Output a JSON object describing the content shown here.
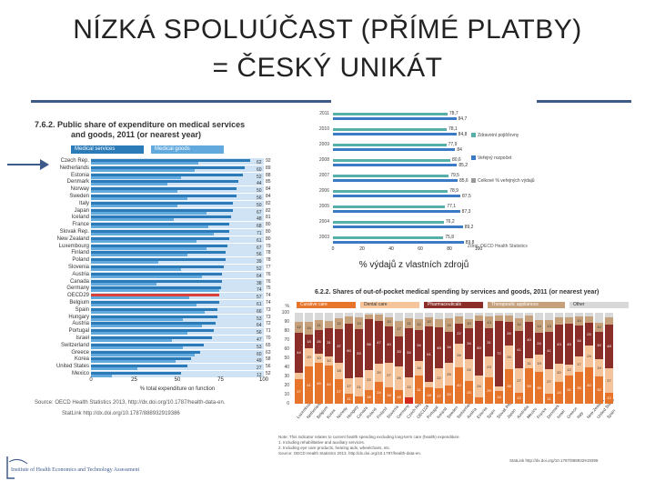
{
  "slide": {
    "title_line1": "NÍZKÁ SPOLUÚČAST (PŘÍMÉ PLATBY)",
    "title_line2": "= ČESKÝ UNIKÁT",
    "accent": "#3e5a8a"
  },
  "left_chart": {
    "fig_title_line1": "7.6.2.  Public share of expenditure on medical services",
    "fig_title_line2": "and goods, 2011 (or nearest year)",
    "legend": [
      "Medical services",
      "Medical goods"
    ],
    "x_ticks": [
      "0",
      "25",
      "50",
      "75",
      "100"
    ],
    "x_title": "% total expenditure on function",
    "source": "Source: OECD Health Statistics 2013, http://dx.doi.org/10.1787/health-data-en.",
    "statlink": "StatLink  http://dx.doi.org/10.1787/888932919386"
  },
  "top_right": {
    "caption": "% výdajů z vlastních zdrojů",
    "note": "Zdroj: OECD Health Statistics",
    "legend": [
      "Zdravotní pojišťovny",
      "Veřejný rozpočet",
      "Celkové % veřejných výdajů"
    ]
  },
  "bottom_right": {
    "title": "6.2.2.  Shares of out-of-pocket medical spending by services and goods, 2011 (or nearest year)",
    "legend": [
      "Curative care",
      "Dental care",
      "Pharmaceuticals",
      "Therapeutic appliances",
      "Other"
    ],
    "y_ticks": [
      "100",
      "90",
      "80",
      "70",
      "60",
      "50",
      "40",
      "30",
      "20",
      "10",
      "0"
    ],
    "y_unit": "%",
    "note1": "Note: This indicator relates to current health spending excluding long-term care (health) expenditure.",
    "note2": "1. Including rehabilitative and auxiliary services.",
    "note3": "2. Including eye care products, hearing aids, wheelchairs, etc.",
    "note4": "Source: OECD Health Statistics 2013, http://dx.doi.org/10.1787/health-data-en.",
    "statlink": "StatLink  http://dx.doi.org/10.1787/888932919396"
  },
  "footer": {
    "logo_text": "Institute of Health Economics and Technology Assessment"
  },
  "chart_data": [
    {
      "type": "bar",
      "title": "Public share of expenditure on medical services and goods, 2011 (or nearest year)",
      "categories": [
        "Czech Rep.",
        "Netherlands",
        "Estonia",
        "Denmark",
        "Norway",
        "Sweden",
        "Italy",
        "Japan",
        "Iceland",
        "France",
        "Slovak Rep.",
        "New Zealand",
        "Luxembourg",
        "Finland",
        "Poland",
        "Slovenia",
        "Austria",
        "Canada",
        "Germany",
        "OECD29",
        "Belgium",
        "Spain",
        "Hungary",
        "Austria",
        "Portugal",
        "Israel",
        "Switzerland",
        "Greece",
        "Korea",
        "United States",
        "Mexico"
      ],
      "series": [
        {
          "name": "Medical services",
          "values": [
            92,
            89,
            88,
            85,
            84,
            84,
            82,
            82,
            81,
            80,
            80,
            80,
            79,
            78,
            78,
            77,
            76,
            76,
            75,
            74,
            74,
            73,
            73,
            72,
            71,
            70,
            65,
            63,
            58,
            56,
            52
          ]
        },
        {
          "name": "Medical goods",
          "values": [
            62,
            60,
            52,
            44,
            50,
            56,
            50,
            67,
            48,
            68,
            71,
            61,
            67,
            56,
            39,
            52,
            64,
            38,
            74,
            57,
            61,
            66,
            53,
            64,
            56,
            47,
            53,
            60,
            49,
            27,
            12
          ]
        }
      ],
      "xlabel": "% total expenditure on function",
      "xlim": [
        0,
        100
      ]
    },
    {
      "type": "bar",
      "categories": [
        "2011",
        "2010",
        "2009",
        "2008",
        "2007",
        "2006",
        "2005",
        "2004",
        "2003"
      ],
      "series": [
        {
          "name": "Zdravotní pojišťovny",
          "values": [
            78.7,
            78.1,
            77.9,
            80.6,
            79.5,
            78.9,
            77.1,
            76.2,
            75.8
          ]
        },
        {
          "name": "Veřejný rozpočet",
          "values": [
            84.7,
            84.8,
            84.0,
            85.2,
            85.6,
            87.5,
            87.3,
            89.2,
            89.8
          ]
        }
      ],
      "xlim": [
        0,
        100
      ]
    },
    {
      "type": "bar",
      "title": "Shares of out-of-pocket medical spending by services and goods, 2011 (or nearest year)",
      "categories": [
        "Luxembourg",
        "Netherlands",
        "Belgium",
        "Korea",
        "Norway",
        "Hungary",
        "Canada",
        "Poland",
        "Finland",
        "Slovenia",
        "Germany",
        "Czech Rep.",
        "OECD28",
        "Portugal",
        "Iceland",
        "Sweden",
        "Switzerland",
        "Austria",
        "Estonia",
        "Spain",
        "Slovak Rep.",
        "Japan",
        "Australia",
        "Mexico",
        "France",
        "Denmark",
        "Israel",
        "Greece",
        "Italy",
        "New Zealand",
        "United States",
        "Spain"
      ],
      "series": [
        {
          "name": "Curative care",
          "values": [
            27,
            41,
            45,
            42,
            27,
            11,
            8,
            15,
            24,
            18,
            15,
            7,
            31,
            18,
            17,
            20,
            40,
            25,
            7,
            29,
            14,
            38,
            12,
            39,
            35,
            11,
            24,
            31,
            35,
            40,
            30,
            12
          ]
        },
        {
          "name": "Dental care",
          "values": [
            7,
            20,
            10,
            10,
            18,
            17,
            21,
            22,
            20,
            27,
            26,
            22,
            16,
            6,
            22,
            25,
            26,
            24,
            24,
            23,
            5,
            26,
            27,
            11,
            19,
            27,
            20,
            12,
            17,
            24,
            19,
            27
          ]
        },
        {
          "name": "Pharmaceuticals",
          "values": [
            44,
            15,
            26,
            31,
            37,
            60,
            53,
            56,
            47,
            40,
            33,
            54,
            34,
            61,
            45,
            34,
            22,
            34,
            60,
            31,
            72,
            26,
            41,
            40,
            24,
            41,
            43,
            45,
            34,
            25,
            30,
            48
          ]
        },
        {
          "name": "Therapeutic appliances",
          "values": [
            12,
            14,
            11,
            8,
            12,
            8,
            13,
            5,
            7,
            10,
            17,
            11,
            12,
            10,
            9,
            15,
            8,
            10,
            6,
            13,
            6,
            7,
            14,
            7,
            14,
            13,
            8,
            7,
            10,
            7,
            10,
            8
          ]
        },
        {
          "name": "Other",
          "values": [
            10,
            10,
            8,
            9,
            6,
            4,
            5,
            2,
            2,
            5,
            9,
            6,
            7,
            5,
            7,
            6,
            4,
            7,
            3,
            4,
            3,
            3,
            6,
            3,
            8,
            8,
            5,
            5,
            4,
            4,
            11,
            5
          ]
        }
      ],
      "ylabel": "%",
      "ylim": [
        0,
        100
      ],
      "stacked": true
    }
  ]
}
